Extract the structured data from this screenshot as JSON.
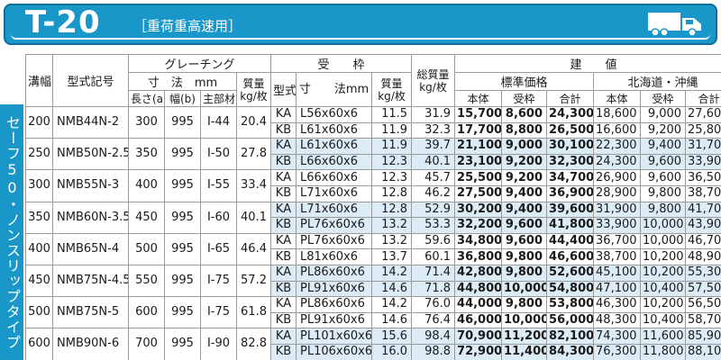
{
  "header": {
    "code": "T-20",
    "subtitle": "［重荷重高速用］"
  },
  "side_label": "セーフ50・ノンスリップタイプ",
  "table": {
    "headers": {
      "width": "溝幅(ℓ)mm",
      "model": "型式記号",
      "grating": "グレーチング",
      "grating_dims": "寸　法　mm",
      "grating_mass": "質量kg/枚",
      "len": "長さ(a)",
      "wid": "幅(b)",
      "main": "主部材",
      "frame": "受　　枠",
      "frame_type": "型式",
      "frame_dims": "寸　　法mm",
      "frame_mass": "質量kg/枚",
      "total_mass": "総質量kg/枚",
      "price": "建　　値",
      "std_price": "標準価格",
      "hokkaido": "北海道・沖縄",
      "body": "本体",
      "frame_price": "受枠",
      "sum": "合計"
    },
    "groups": [
      {
        "width": "200",
        "model": "NMB44N-2",
        "length": "300",
        "wid": "995",
        "main": "I-44",
        "gmass": "20.4",
        "rows": [
          {
            "type": "KA",
            "dims": "L56x60x6",
            "fmass": "11.5",
            "total": "31.9",
            "s_body": "15,700",
            "s_frame": "8,600",
            "s_sum": "24,300",
            "h_body": "18,600",
            "h_frame": "9,000",
            "h_sum": "27,600"
          },
          {
            "type": "KB",
            "dims": "L61x60x6",
            "fmass": "11.9",
            "total": "32.3",
            "s_body": "17,700",
            "s_frame": "8,800",
            "s_sum": "26,500",
            "h_body": "16,600",
            "h_frame": "9,200",
            "h_sum": "25,800"
          }
        ]
      },
      {
        "width": "250",
        "model": "NMB50N-2.5",
        "length": "350",
        "wid": "995",
        "main": "I-50",
        "gmass": "27.8",
        "rows": [
          {
            "type": "KA",
            "dims": "L61x60x6",
            "fmass": "11.9",
            "total": "39.7",
            "s_body": "21,100",
            "s_frame": "9,000",
            "s_sum": "30,100",
            "h_body": "22,300",
            "h_frame": "9,400",
            "h_sum": "31,700"
          },
          {
            "type": "KB",
            "dims": "L66x60x6",
            "fmass": "12.3",
            "total": "40.1",
            "s_body": "23,100",
            "s_frame": "9,200",
            "s_sum": "32,300",
            "h_body": "24,300",
            "h_frame": "9,600",
            "h_sum": "33,900"
          }
        ]
      },
      {
        "width": "300",
        "model": "NMB55N-3",
        "length": "400",
        "wid": "995",
        "main": "I-55",
        "gmass": "33.4",
        "rows": [
          {
            "type": "KA",
            "dims": "L66x60x6",
            "fmass": "12.3",
            "total": "45.7",
            "s_body": "25,500",
            "s_frame": "9,200",
            "s_sum": "34,700",
            "h_body": "26,900",
            "h_frame": "9,600",
            "h_sum": "36,500"
          },
          {
            "type": "KB",
            "dims": "L71x60x6",
            "fmass": "12.8",
            "total": "46.2",
            "s_body": "27,500",
            "s_frame": "9,400",
            "s_sum": "36,900",
            "h_body": "28,900",
            "h_frame": "9,800",
            "h_sum": "38,700"
          }
        ]
      },
      {
        "width": "350",
        "model": "NMB60N-3.5",
        "length": "450",
        "wid": "995",
        "main": "I-60",
        "gmass": "40.1",
        "rows": [
          {
            "type": "KA",
            "dims": "L71x60x6",
            "fmass": "12.8",
            "total": "52.9",
            "s_body": "30,200",
            "s_frame": "9,400",
            "s_sum": "39,600",
            "h_body": "31,900",
            "h_frame": "9,800",
            "h_sum": "41,700"
          },
          {
            "type": "KB",
            "dims": "PL76x60x6",
            "fmass": "13.2",
            "total": "53.3",
            "s_body": "32,200",
            "s_frame": "9,600",
            "s_sum": "41,800",
            "h_body": "33,900",
            "h_frame": "10,000",
            "h_sum": "43,900"
          }
        ]
      },
      {
        "width": "400",
        "model": "NMB65N-4",
        "length": "500",
        "wid": "995",
        "main": "I-65",
        "gmass": "46.4",
        "rows": [
          {
            "type": "KA",
            "dims": "PL76x60x6",
            "fmass": "13.2",
            "total": "59.6",
            "s_body": "34,800",
            "s_frame": "9,600",
            "s_sum": "44,400",
            "h_body": "36,700",
            "h_frame": "10,000",
            "h_sum": "46,700"
          },
          {
            "type": "KB",
            "dims": "L81x60x6",
            "fmass": "13.7",
            "total": "60.1",
            "s_body": "36,800",
            "s_frame": "9,800",
            "s_sum": "46,600",
            "h_body": "38,700",
            "h_frame": "10,200",
            "h_sum": "48,900"
          }
        ]
      },
      {
        "width": "450",
        "model": "NMB75N-4.5",
        "length": "550",
        "wid": "995",
        "main": "I-75",
        "gmass": "57.2",
        "rows": [
          {
            "type": "KA",
            "dims": "PL86x60x6",
            "fmass": "14.2",
            "total": "71.4",
            "s_body": "42,800",
            "s_frame": "9,800",
            "s_sum": "52,600",
            "h_body": "45,100",
            "h_frame": "10,200",
            "h_sum": "55,300"
          },
          {
            "type": "KB",
            "dims": "PL91x60x6",
            "fmass": "14.6",
            "total": "71.8",
            "s_body": "44,800",
            "s_frame": "10,000",
            "s_sum": "54,800",
            "h_body": "47,100",
            "h_frame": "10,400",
            "h_sum": "57,500"
          }
        ]
      },
      {
        "width": "500",
        "model": "NMB75N-5",
        "length": "600",
        "wid": "995",
        "main": "I-75",
        "gmass": "61.8",
        "rows": [
          {
            "type": "KA",
            "dims": "PL86x60x6",
            "fmass": "14.2",
            "total": "76.0",
            "s_body": "44,000",
            "s_frame": "9,800",
            "s_sum": "53,800",
            "h_body": "46,300",
            "h_frame": "10,200",
            "h_sum": "56,500"
          },
          {
            "type": "KB",
            "dims": "PL91x60x6",
            "fmass": "14.6",
            "total": "76.4",
            "s_body": "46,000",
            "s_frame": "10,000",
            "s_sum": "56,000",
            "h_body": "48,300",
            "h_frame": "10,400",
            "h_sum": "58,700"
          }
        ]
      },
      {
        "width": "600",
        "model": "NMB90N-6",
        "length": "700",
        "wid": "995",
        "main": "I-90",
        "gmass": "82.8",
        "rows": [
          {
            "type": "KA",
            "dims": "PL101x60x6",
            "fmass": "15.6",
            "total": "98.4",
            "s_body": "70,900",
            "s_frame": "11,200",
            "s_sum": "82,100",
            "h_body": "74,300",
            "h_frame": "11,600",
            "h_sum": "85,900"
          },
          {
            "type": "KB",
            "dims": "PL106x60x6",
            "fmass": "16.0",
            "total": "98.8",
            "s_body": "72,900",
            "s_frame": "11,400",
            "s_sum": "84,300",
            "h_body": "76,300",
            "h_frame": "11,800",
            "h_sum": "88,100"
          }
        ]
      }
    ]
  }
}
